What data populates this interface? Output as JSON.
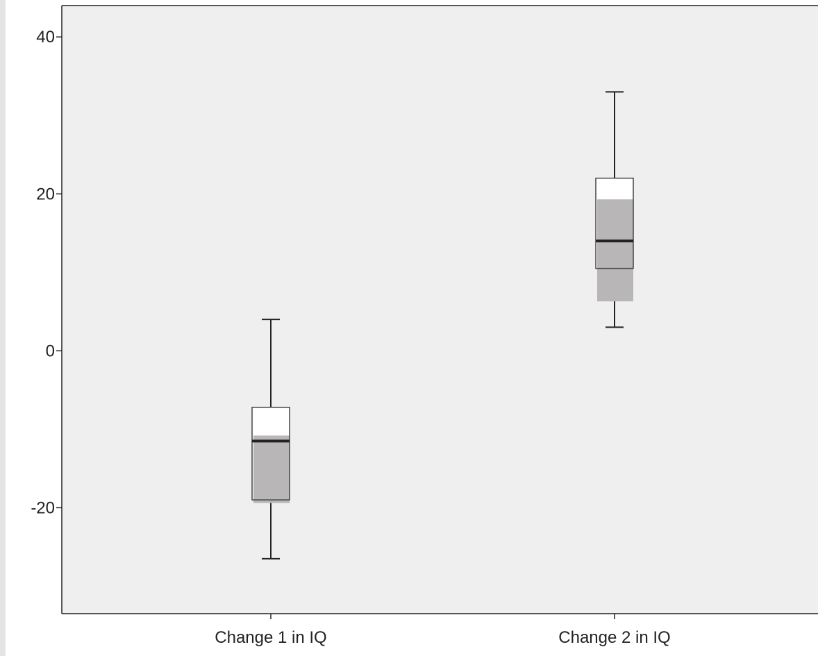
{
  "chart_data": {
    "type": "boxplot",
    "title": "",
    "xlabel": "",
    "ylabel": "",
    "ylim": [
      -33.5,
      44
    ],
    "yticks": [
      -20,
      0,
      20,
      40
    ],
    "ytick_labels": [
      "-20",
      "0",
      "20",
      "40"
    ],
    "categories": [
      "Change 1 in IQ",
      "Change 2 in IQ"
    ],
    "boxes": [
      {
        "category": "Change 1 in IQ",
        "whisker_min": -26.5,
        "q1": -19,
        "median": -11.5,
        "q3": -7.2,
        "whisker_max": 4,
        "shaded_range": [
          -19.4,
          -10.8
        ]
      },
      {
        "category": "Change 2 in IQ",
        "whisker_min": 3,
        "q1": 10.5,
        "median": 14,
        "q3": 22,
        "whisker_max": 33,
        "shaded_range": [
          6.3,
          19.3
        ]
      }
    ],
    "grid": false,
    "legend": "none"
  },
  "colors": {
    "plot_background": "#efefef",
    "box_fill": "#ffffff",
    "shaded_band": "#b8b6b7",
    "lines": "#222222"
  }
}
